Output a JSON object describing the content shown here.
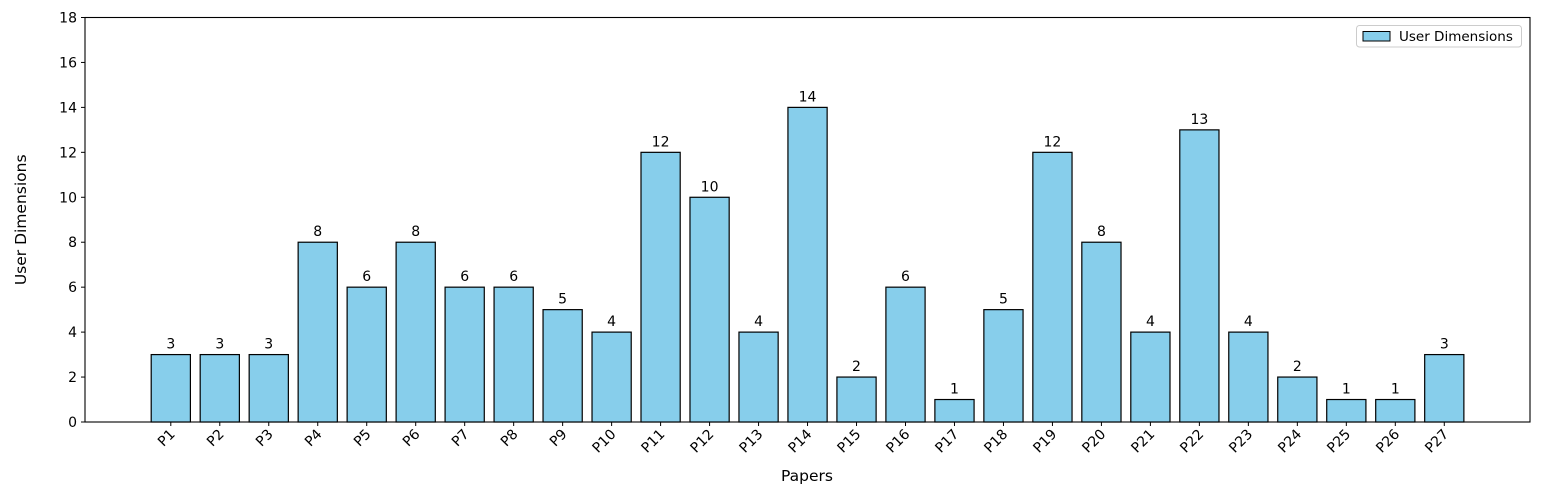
{
  "chart_data": {
    "type": "bar",
    "title": "",
    "xlabel": "Papers",
    "ylabel": "User Dimensions",
    "categories": [
      "P1",
      "P2",
      "P3",
      "P4",
      "P5",
      "P6",
      "P7",
      "P8",
      "P9",
      "P10",
      "P11",
      "P12",
      "P13",
      "P14",
      "P15",
      "P16",
      "P17",
      "P18",
      "P19",
      "P20",
      "P21",
      "P22",
      "P23",
      "P24",
      "P25",
      "P26",
      "P27"
    ],
    "values": [
      3,
      3,
      3,
      8,
      6,
      8,
      6,
      6,
      5,
      4,
      12,
      10,
      4,
      14,
      2,
      6,
      1,
      5,
      12,
      8,
      4,
      13,
      4,
      2,
      1,
      1,
      3
    ],
    "ylim": [
      0,
      18
    ],
    "ytick_step": 2,
    "yticks": [
      0,
      2,
      4,
      6,
      8,
      10,
      12,
      14,
      16,
      18
    ],
    "grid": false,
    "value_labels": true,
    "bar_color": "#87CEEB",
    "bar_edge_color": "#000000",
    "axis_color": "#000000",
    "legend": {
      "position": "upper right",
      "frame_color": "#cccccc",
      "entries": [
        {
          "label": "User Dimensions",
          "color": "#87CEEB"
        }
      ]
    }
  }
}
